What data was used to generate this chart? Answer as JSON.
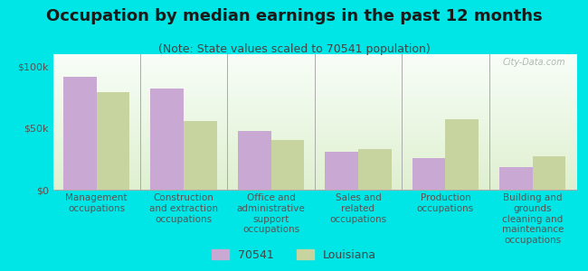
{
  "title": "Occupation by median earnings in the past 12 months",
  "subtitle": "(Note: State values scaled to 70541 population)",
  "categories": [
    "Management\noccupations",
    "Construction\nand extraction\noccupations",
    "Office and\nadministrative\nsupport\noccupations",
    "Sales and\nrelated\noccupations",
    "Production\noccupations",
    "Building and\ngrounds\ncleaning and\nmaintenance\noccupations"
  ],
  "values_70541": [
    92000,
    82000,
    48000,
    31000,
    26000,
    18000
  ],
  "values_louisiana": [
    79000,
    56000,
    40000,
    33000,
    57000,
    27000
  ],
  "color_70541": "#c9a8d4",
  "color_louisiana": "#c8d4a0",
  "bar_width": 0.38,
  "ylim": [
    0,
    110000
  ],
  "yticks": [
    0,
    50000,
    100000
  ],
  "ytick_labels": [
    "$0",
    "$50k",
    "$100k"
  ],
  "chart_bg_top": "#f8fef8",
  "chart_bg_bottom": "#dff0d0",
  "outer_background": "#00e5e5",
  "watermark": "City-Data.com",
  "legend_labels": [
    "70541",
    "Louisiana"
  ],
  "title_fontsize": 13,
  "subtitle_fontsize": 9,
  "tick_fontsize": 8,
  "label_fontsize": 7.5,
  "legend_fontsize": 9
}
